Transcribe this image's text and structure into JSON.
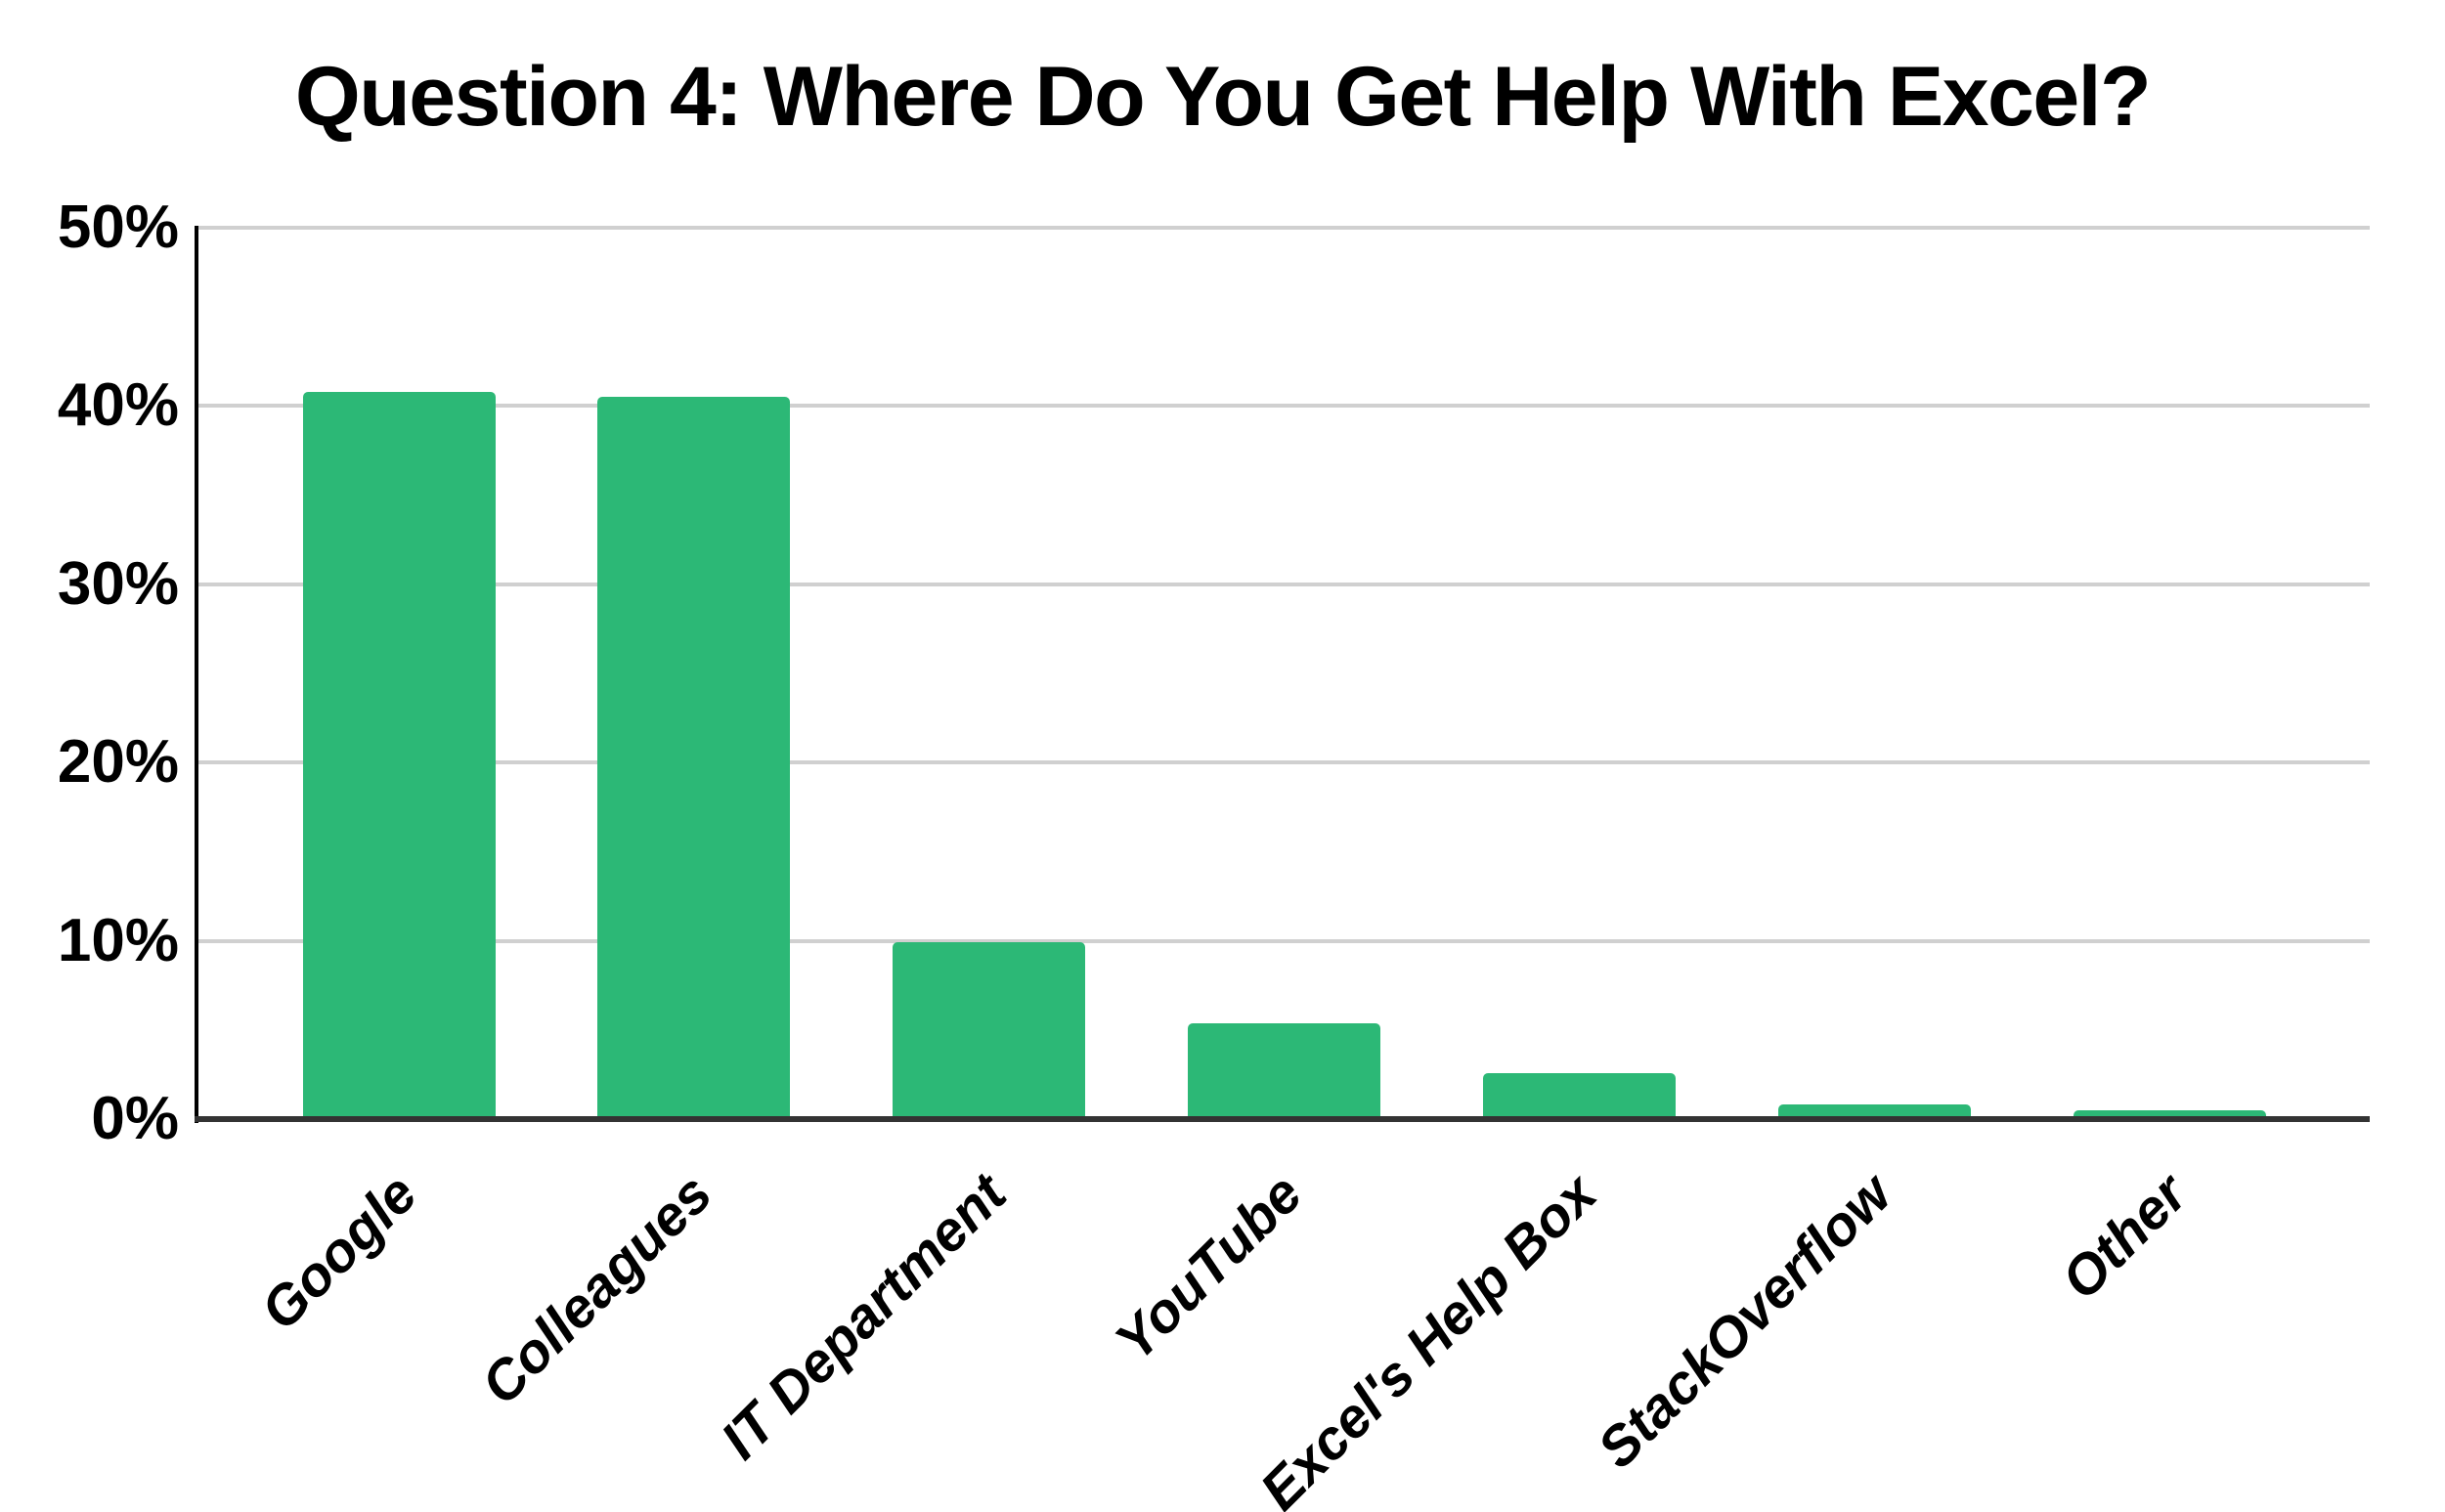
{
  "title": "Question 4: Where Do You Get Help With Excel?",
  "colors": {
    "background": "#ffffff",
    "bar": "#2cb876",
    "gridline": "#d0d0d0",
    "y_axis": "#000000",
    "x_axis": "#333333",
    "text": "#000000"
  },
  "chart_data": {
    "type": "bar",
    "title": "Question 4: Where Do You Get Help With Excel?",
    "categories": [
      "Google",
      "Colleagues",
      "IT Department",
      "YouTube",
      "Excel's Help Box",
      "StackOverflow",
      "Other"
    ],
    "values": [
      40.8,
      40.5,
      9.9,
      5.4,
      2.6,
      0.8,
      0.5
    ],
    "unit": "%",
    "xlabel": "",
    "ylabel": "",
    "ylim": [
      0,
      50
    ],
    "ytick_labels": [
      "50%",
      "40%",
      "30%",
      "20%",
      "10%",
      "0%"
    ],
    "ytick_values": [
      50,
      40,
      30,
      20,
      10,
      0
    ],
    "grid": "horizontal",
    "legend_position": "none",
    "bar_color": "#2cb876",
    "x_labels_rotation_deg": -45
  }
}
